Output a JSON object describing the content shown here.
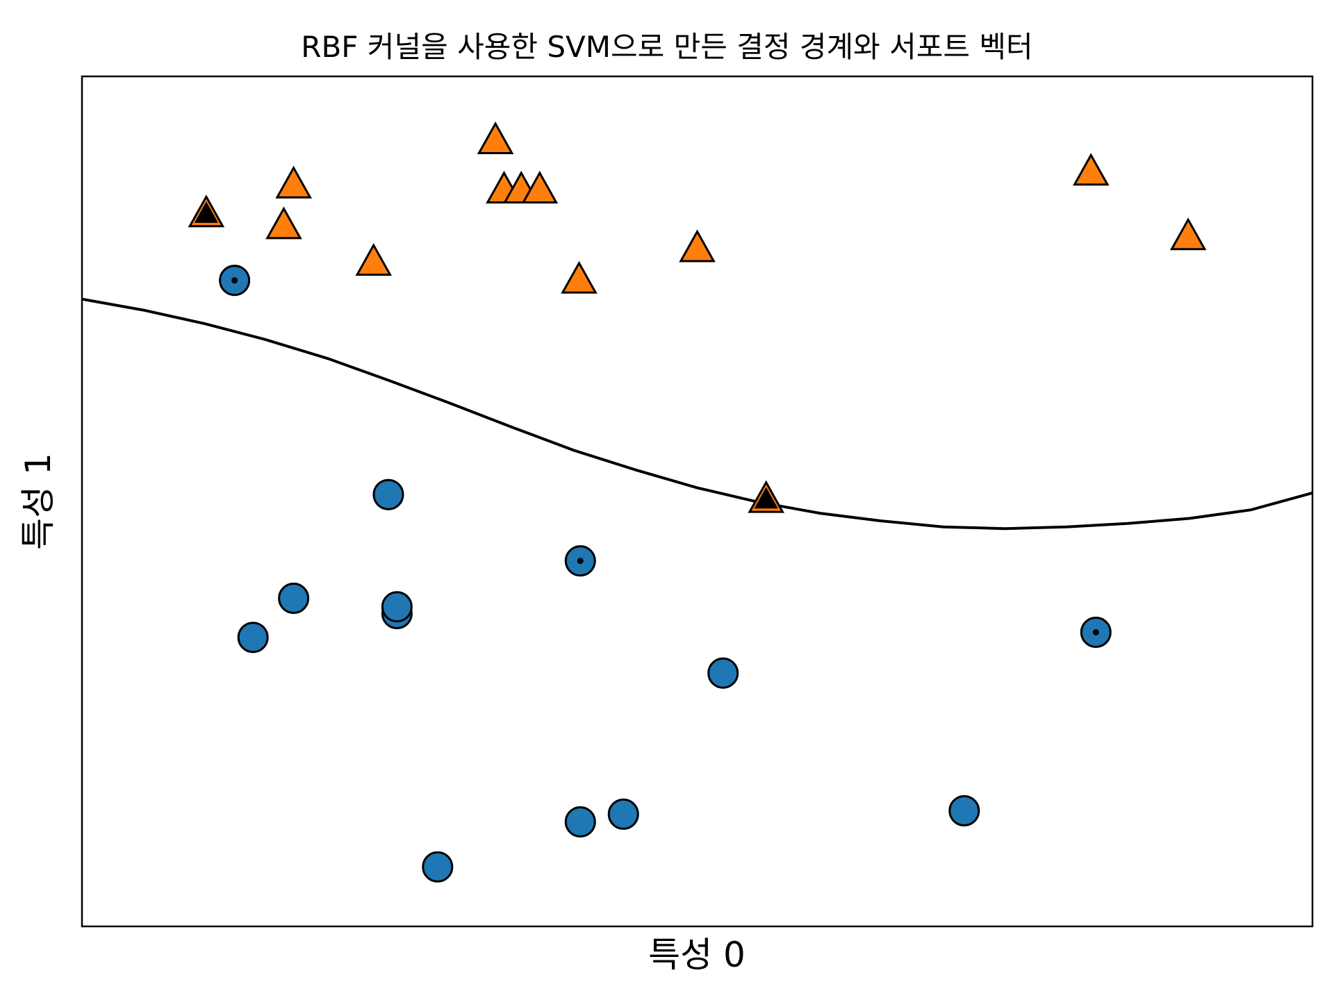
{
  "chart_data": {
    "type": "scatter",
    "title": "RBF 커널을 사용한 SVM으로 만든 결정 경계와 서포트 벡터",
    "xlabel": "특성 0",
    "ylabel": "특성 1",
    "xlim": [
      0,
      100
    ],
    "ylim": [
      0,
      100
    ],
    "grid": false,
    "ticks_visible": false,
    "colors": {
      "class0": "#1f77b4",
      "class1": "#ff7f0e",
      "marker_edge": "#000000",
      "boundary": "#000000",
      "support_vector": "#000000"
    },
    "series": [
      {
        "class": 0,
        "marker": "circle",
        "points": [
          [
            12.4,
            76.0
          ],
          [
            24.9,
            50.8
          ],
          [
            40.5,
            43.0
          ],
          [
            17.2,
            38.6
          ],
          [
            25.6,
            36.8
          ],
          [
            25.6,
            37.6
          ],
          [
            13.9,
            34.0
          ],
          [
            82.4,
            34.6
          ],
          [
            52.1,
            29.8
          ],
          [
            71.7,
            13.6
          ],
          [
            44.0,
            13.2
          ],
          [
            40.5,
            12.3
          ],
          [
            28.9,
            7.0
          ]
        ]
      },
      {
        "class": 1,
        "marker": "triangle",
        "points": [
          [
            33.6,
            92.4
          ],
          [
            17.2,
            87.2
          ],
          [
            10.1,
            83.8
          ],
          [
            16.4,
            82.4
          ],
          [
            23.7,
            78.1
          ],
          [
            34.3,
            86.6
          ],
          [
            35.7,
            86.6
          ],
          [
            37.2,
            86.6
          ],
          [
            40.4,
            76.0
          ],
          [
            50.0,
            79.7
          ],
          [
            82.0,
            88.7
          ],
          [
            89.9,
            81.1
          ],
          [
            55.6,
            50.2
          ]
        ]
      }
    ],
    "support_vectors": [
      {
        "x": 12.4,
        "y": 76.0,
        "class": 0
      },
      {
        "x": 40.5,
        "y": 43.0,
        "class": 0
      },
      {
        "x": 82.4,
        "y": 34.6,
        "class": 0
      },
      {
        "x": 10.1,
        "y": 83.8,
        "class": 1
      },
      {
        "x": 55.6,
        "y": 50.2,
        "class": 1
      }
    ],
    "decision_boundary": {
      "x": [
        0,
        5,
        10,
        15,
        20,
        25,
        30,
        35,
        40,
        45,
        50,
        55,
        60,
        65,
        70,
        75,
        80,
        85,
        90,
        95,
        100
      ],
      "y": [
        73.8,
        72.5,
        70.9,
        69.0,
        66.8,
        64.2,
        61.5,
        58.7,
        56.0,
        53.7,
        51.6,
        49.9,
        48.6,
        47.7,
        47.0,
        46.8,
        47.0,
        47.4,
        48.0,
        49.0,
        51.0
      ]
    }
  }
}
